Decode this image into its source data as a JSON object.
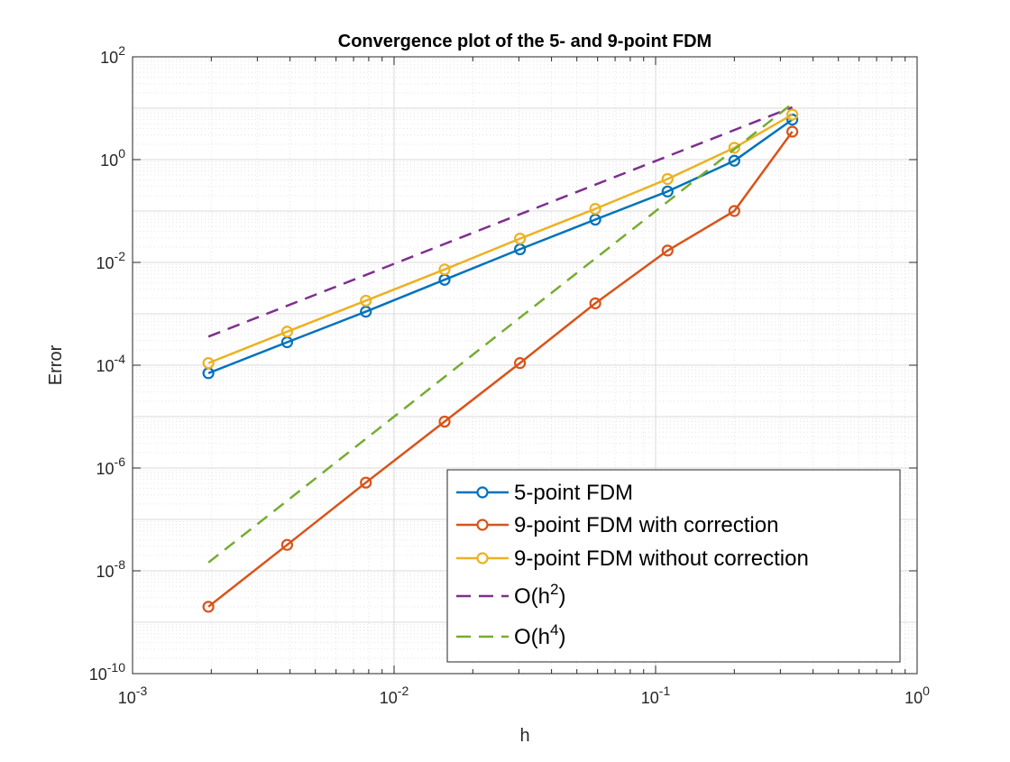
{
  "chart_data": {
    "type": "line",
    "title": "Convergence plot of the 5- and 9-point FDM",
    "xlabel": "h",
    "ylabel": "Error",
    "xscale": "log",
    "yscale": "log",
    "xlim": [
      0.001,
      1
    ],
    "ylim": [
      1e-10,
      100
    ],
    "grid": "major and minor",
    "legend_position": "bottom-right",
    "x_tick_labels": [
      {
        "base": "10",
        "exp": "-3"
      },
      {
        "base": "10",
        "exp": "-2"
      },
      {
        "base": "10",
        "exp": "-1"
      },
      {
        "base": "10",
        "exp": "0"
      }
    ],
    "y_tick_labels": [
      {
        "base": "10",
        "exp": "-10"
      },
      {
        "base": "10",
        "exp": "-8"
      },
      {
        "base": "10",
        "exp": "-6"
      },
      {
        "base": "10",
        "exp": "-4"
      },
      {
        "base": "10",
        "exp": "-2"
      },
      {
        "base": "10",
        "exp": "0"
      },
      {
        "base": "10",
        "exp": "2"
      }
    ],
    "x": [
      0.00195,
      0.0039,
      0.0078,
      0.0156,
      0.0303,
      0.0588,
      0.1111,
      0.2,
      0.3333
    ],
    "series": [
      {
        "name": "5-point FDM",
        "color": "#0072BD",
        "style": "solid",
        "marker": "circle",
        "values": [
          7e-05,
          0.00028,
          0.0011,
          0.0046,
          0.018,
          0.068,
          0.24,
          0.95,
          6.0
        ]
      },
      {
        "name": "9-point FDM with correction",
        "color": "#D95319",
        "style": "solid",
        "marker": "circle",
        "values": [
          2e-09,
          3.2e-08,
          5.2e-07,
          8e-06,
          0.00011,
          0.0016,
          0.017,
          0.1,
          3.5
        ]
      },
      {
        "name": "9-point FDM without correction",
        "color": "#EDB120",
        "style": "solid",
        "marker": "circle",
        "values": [
          0.00011,
          0.00045,
          0.0018,
          0.0073,
          0.029,
          0.11,
          0.42,
          1.7,
          7.5
        ]
      },
      {
        "name": "O(h",
        "name_sup": "2",
        "name_suffix": ")",
        "color": "#7E2F8E",
        "style": "dashed",
        "marker": "none",
        "values": [
          0.00036,
          0.00143,
          0.0057,
          0.0229,
          0.0865,
          0.3255,
          1.162,
          3.764,
          10.45
        ]
      },
      {
        "name": "O(h",
        "name_sup": "4",
        "name_suffix": ")",
        "color": "#77AC30",
        "style": "dashed",
        "marker": "none",
        "values": [
          1.45e-08,
          2.31e-07,
          3.7e-06,
          5.92e-05,
          0.000843,
          0.0119,
          0.1518,
          1.594,
          12.3
        ]
      }
    ]
  }
}
